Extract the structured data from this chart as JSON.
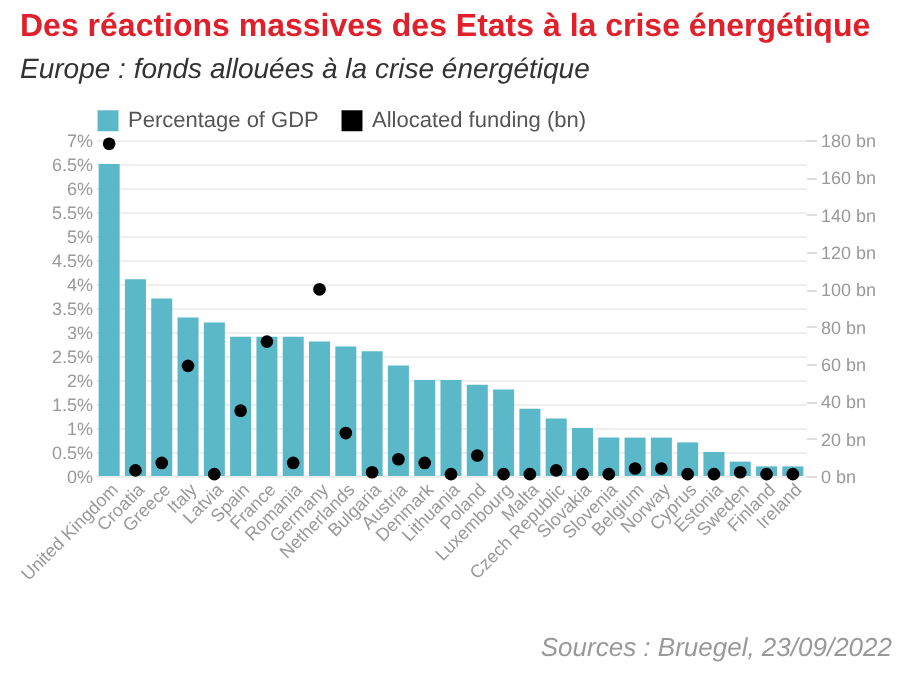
{
  "chart_data": {
    "type": "bar",
    "title": "Des réactions massives des Etats à la crise énergétique",
    "subtitle": "Europe : fonds allouées à la crise énergétique",
    "categories": [
      "United Kingdom",
      "Croatia",
      "Greece",
      "Italy",
      "Latvia",
      "Spain",
      "France",
      "Romania",
      "Germany",
      "Netherlands",
      "Bulgaria",
      "Austria",
      "Denmark",
      "Lithuania",
      "Poland",
      "Luxembourg",
      "Malta",
      "Czech Republic",
      "Slovakia",
      "Slovenia",
      "Belgium",
      "Norway",
      "Cyprus",
      "Estonia",
      "Sweden",
      "Finland",
      "Ireland"
    ],
    "series": [
      {
        "name": "Percentage of GDP",
        "type": "bar",
        "color": "#5bb8c9",
        "values": [
          6.5,
          4.1,
          3.7,
          3.3,
          3.2,
          2.9,
          2.9,
          2.9,
          2.8,
          2.7,
          2.6,
          2.3,
          2.0,
          2.0,
          1.9,
          1.8,
          1.4,
          1.2,
          1.0,
          0.8,
          0.8,
          0.8,
          0.7,
          0.5,
          0.3,
          0.2,
          0.2
        ]
      },
      {
        "name": "Allocated funding (bn)",
        "type": "scatter",
        "axis": "y2",
        "color": "#000000",
        "values": [
          178,
          3,
          7,
          59,
          1,
          35,
          72,
          7,
          100,
          23,
          2,
          9,
          7,
          1,
          11,
          1,
          1,
          3,
          1,
          1,
          4,
          4,
          1,
          1,
          2,
          1,
          1
        ]
      }
    ],
    "ylim": [
      0,
      7
    ],
    "yticks": [
      {
        "value": 0,
        "label": "0%"
      },
      {
        "value": 0.5,
        "label": "0.5%"
      },
      {
        "value": 1,
        "label": "1%"
      },
      {
        "value": 1.5,
        "label": "1.5%"
      },
      {
        "value": 2,
        "label": "2%"
      },
      {
        "value": 2.5,
        "label": "2.5%"
      },
      {
        "value": 3,
        "label": "3%"
      },
      {
        "value": 3.5,
        "label": "3.5%"
      },
      {
        "value": 4,
        "label": "4%"
      },
      {
        "value": 4.5,
        "label": "4.5%"
      },
      {
        "value": 5,
        "label": "5%"
      },
      {
        "value": 5.5,
        "label": "5.5%"
      },
      {
        "value": 6,
        "label": "6%"
      },
      {
        "value": 6.5,
        "label": "6.5%"
      },
      {
        "value": 7,
        "label": "7%"
      }
    ],
    "y2lim": [
      0,
      180
    ],
    "y2ticks": [
      {
        "value": 0,
        "label": "0 bn"
      },
      {
        "value": 20,
        "label": "20 bn"
      },
      {
        "value": 40,
        "label": "40 bn"
      },
      {
        "value": 60,
        "label": "60 bn"
      },
      {
        "value": 80,
        "label": "80 bn"
      },
      {
        "value": 100,
        "label": "100 bn"
      },
      {
        "value": 120,
        "label": "120 bn"
      },
      {
        "value": 140,
        "label": "140 bn"
      },
      {
        "value": 160,
        "label": "160 bn"
      },
      {
        "value": 180,
        "label": "180 bn"
      }
    ],
    "grid": "y",
    "legend": "top left",
    "marker": "circle",
    "annotations": [
      "Sources : Bruegel, 23/09/2022"
    ]
  }
}
